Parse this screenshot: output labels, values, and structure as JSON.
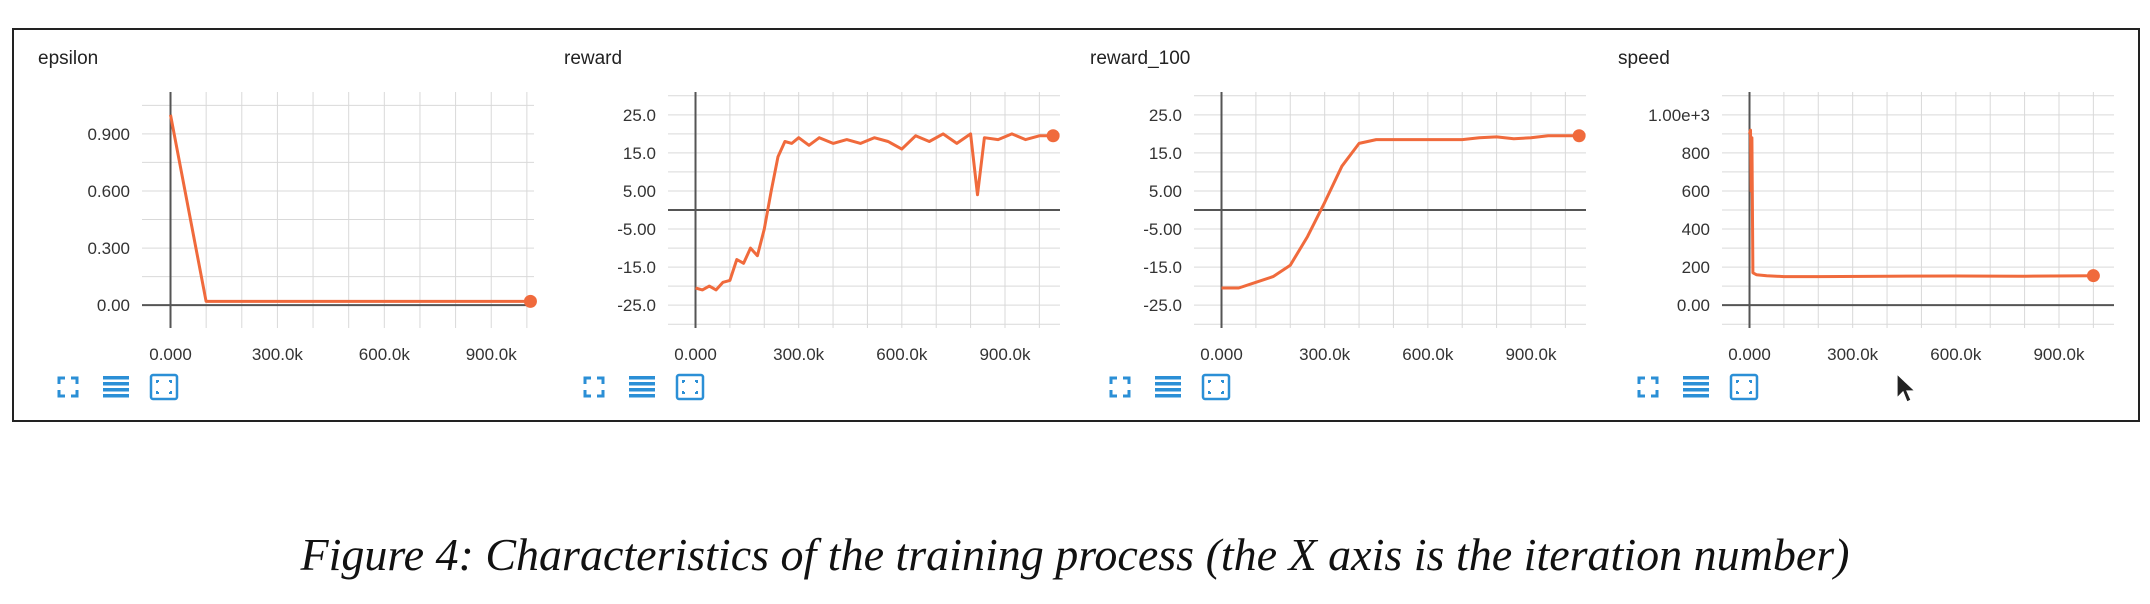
{
  "caption": "Figure 4: Characteristics of the training process (the X axis is the iteration number)",
  "colors": {
    "series": "#f06a3c",
    "axis": "#555555",
    "grid": "#d9d9d9",
    "icon": "#2b8fd6"
  },
  "toolbar_icons": [
    "expand-icon",
    "list-icon",
    "fit-domain-icon"
  ],
  "chart_data": [
    {
      "type": "line",
      "title": "epsilon",
      "xlim": [
        -80000,
        1020000
      ],
      "ylim": [
        -0.12,
        1.12
      ],
      "xticks": [
        0,
        300000,
        600000,
        900000
      ],
      "xtick_labels": [
        "0.000",
        "300.0k",
        "600.0k",
        "900.0k"
      ],
      "yticks": [
        0,
        0.3,
        0.6,
        0.9
      ],
      "ytick_labels": [
        "0.00",
        "0.300",
        "0.600",
        "0.900"
      ],
      "grid": true,
      "series": [
        {
          "x": [
            0,
            100000,
            1010000
          ],
          "y": [
            1.0,
            0.02,
            0.02
          ]
        }
      ]
    },
    {
      "type": "line",
      "title": "reward",
      "xlim": [
        -80000,
        1060000
      ],
      "ylim": [
        -31,
        31
      ],
      "xticks": [
        0,
        300000,
        600000,
        900000
      ],
      "xtick_labels": [
        "0.000",
        "300.0k",
        "600.0k",
        "900.0k"
      ],
      "yticks": [
        -25,
        -15,
        -5,
        5,
        15,
        25
      ],
      "ytick_labels": [
        "-25.0",
        "-15.0",
        "-5.00",
        "5.00",
        "15.0",
        "25.0"
      ],
      "grid": true,
      "series": [
        {
          "x": [
            0,
            20000,
            40000,
            60000,
            80000,
            100000,
            120000,
            140000,
            160000,
            180000,
            200000,
            220000,
            240000,
            260000,
            280000,
            300000,
            330000,
            360000,
            400000,
            440000,
            480000,
            520000,
            560000,
            600000,
            640000,
            680000,
            720000,
            760000,
            800000,
            820000,
            840000,
            880000,
            920000,
            960000,
            1000000,
            1040000
          ],
          "y": [
            -20.5,
            -21,
            -20,
            -21,
            -19,
            -18.5,
            -13,
            -14,
            -10,
            -12,
            -5,
            5,
            14,
            18,
            17.5,
            19,
            17,
            19,
            17.5,
            18.5,
            17.5,
            19,
            18,
            16,
            19.5,
            18,
            20,
            17.5,
            20,
            4,
            19,
            18.5,
            20,
            18.5,
            19.5,
            19.5
          ]
        }
      ]
    },
    {
      "type": "line",
      "title": "reward_100",
      "xlim": [
        -80000,
        1060000
      ],
      "ylim": [
        -31,
        31
      ],
      "xticks": [
        0,
        300000,
        600000,
        900000
      ],
      "xtick_labels": [
        "0.000",
        "300.0k",
        "600.0k",
        "900.0k"
      ],
      "yticks": [
        -25,
        -15,
        -5,
        5,
        15,
        25
      ],
      "ytick_labels": [
        "-25.0",
        "-15.0",
        "-5.00",
        "5.00",
        "15.0",
        "25.0"
      ],
      "grid": true,
      "series": [
        {
          "x": [
            0,
            50000,
            100000,
            150000,
            200000,
            250000,
            300000,
            350000,
            400000,
            450000,
            500000,
            600000,
            700000,
            750000,
            800000,
            850000,
            900000,
            950000,
            1000000,
            1040000
          ],
          "y": [
            -20.5,
            -20.5,
            -19,
            -17.5,
            -14.5,
            -7,
            2,
            11.5,
            17.5,
            18.5,
            18.5,
            18.5,
            18.5,
            19,
            19.2,
            18.7,
            19,
            19.5,
            19.5,
            19.5
          ]
        }
      ]
    },
    {
      "type": "line",
      "title": "speed",
      "xlim": [
        -80000,
        1060000
      ],
      "ylim": [
        -120,
        1120
      ],
      "xticks": [
        0,
        300000,
        600000,
        900000
      ],
      "xtick_labels": [
        "0.000",
        "300.0k",
        "600.0k",
        "900.0k"
      ],
      "yticks": [
        0,
        200,
        400,
        600,
        800,
        1000
      ],
      "ytick_labels": [
        "0.00",
        "200",
        "400",
        "600",
        "800",
        "1.00e+3"
      ],
      "grid": true,
      "series": [
        {
          "x": [
            0,
            3000,
            5000,
            7000,
            10000,
            20000,
            50000,
            100000,
            200000,
            400000,
            600000,
            800000,
            1000000
          ],
          "y": [
            900,
            920,
            600,
            880,
            170,
            160,
            155,
            150,
            150,
            152,
            153,
            152,
            155
          ]
        }
      ]
    }
  ]
}
